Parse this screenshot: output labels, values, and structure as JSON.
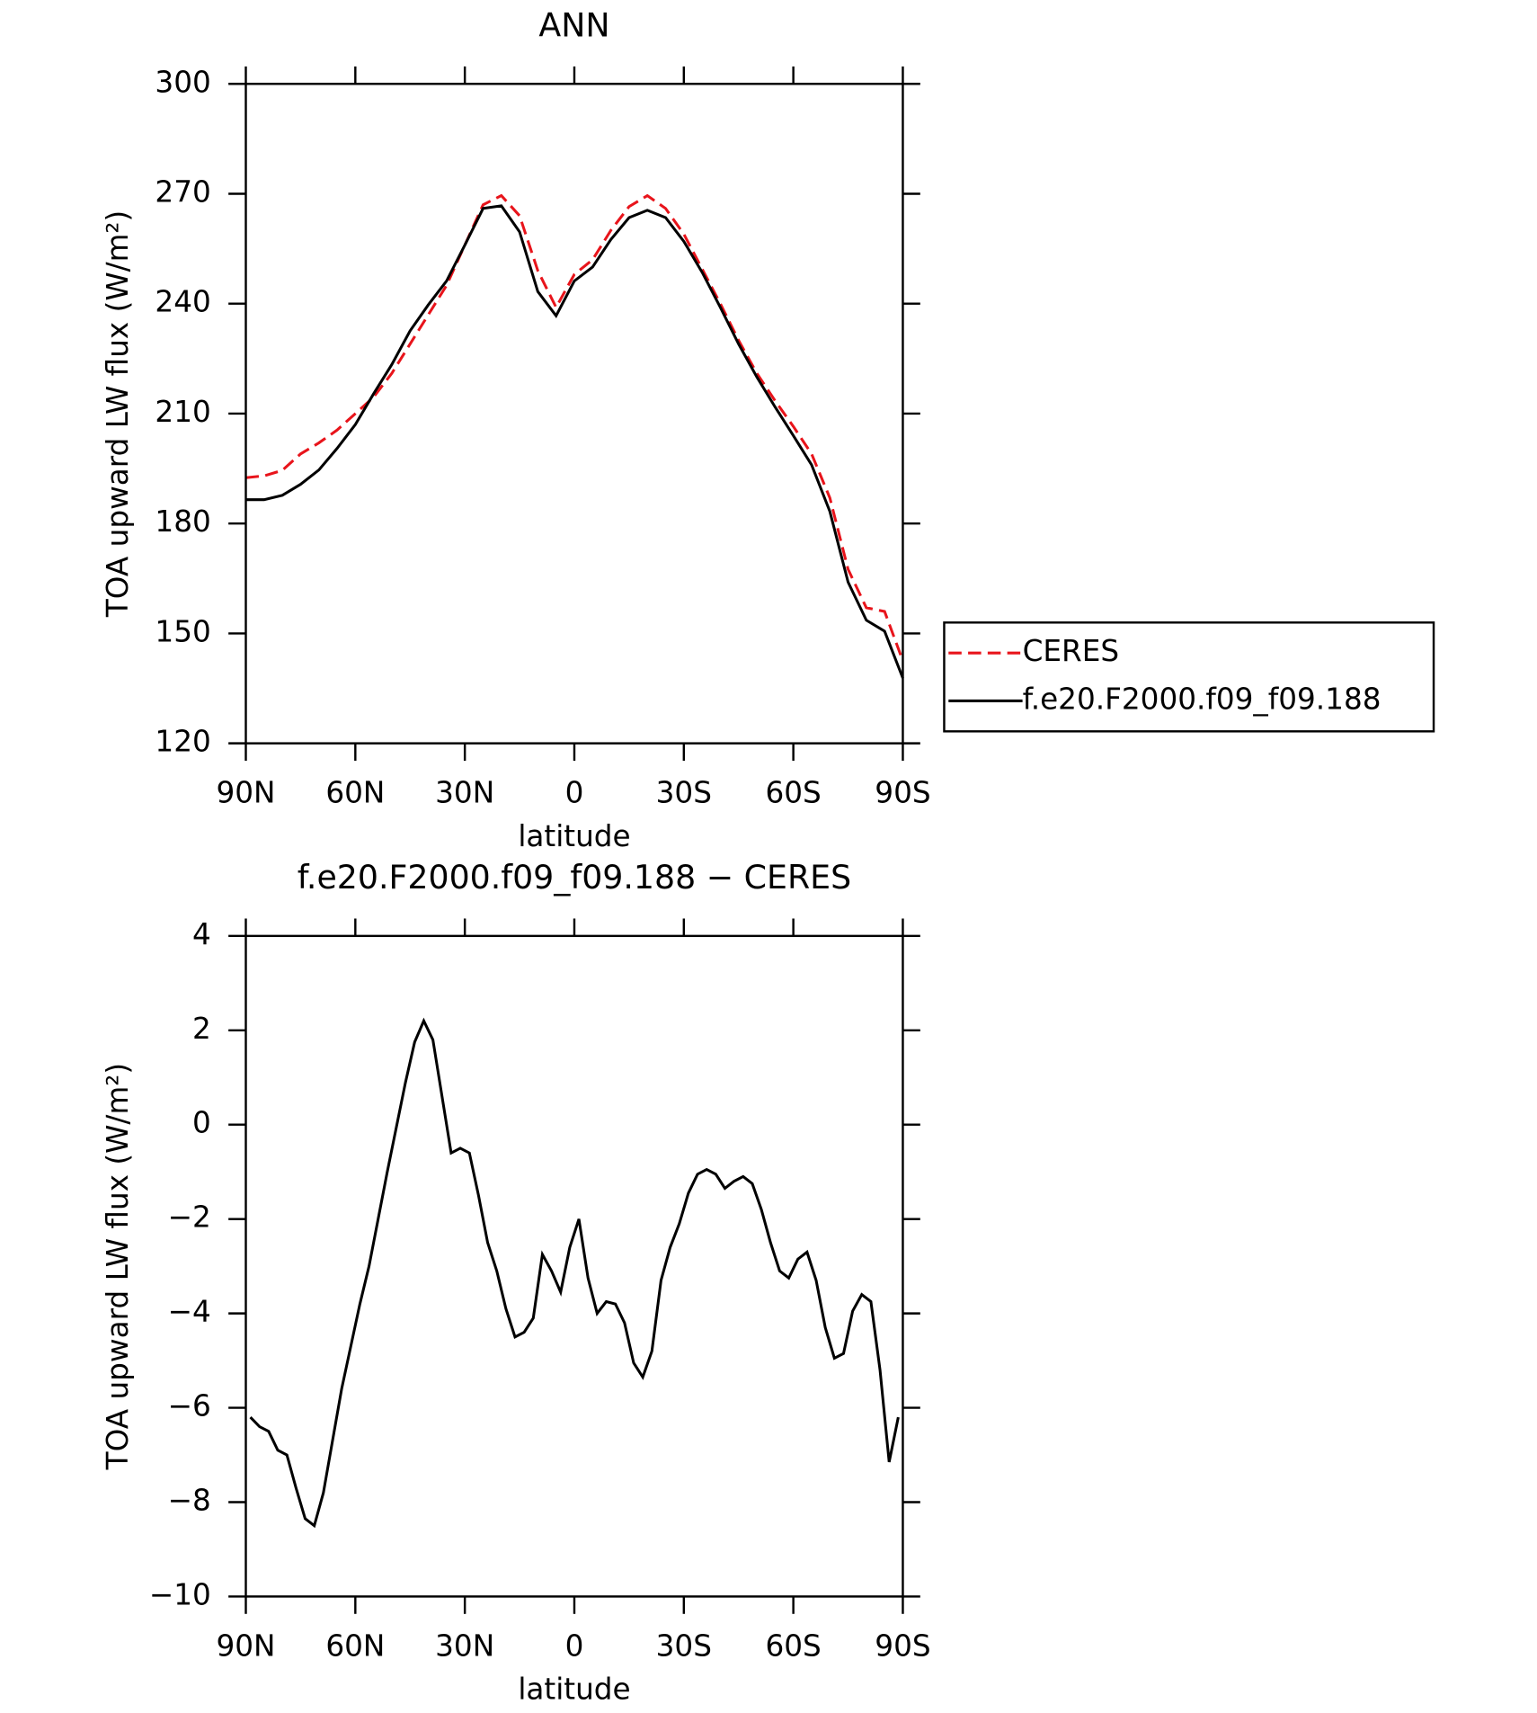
{
  "chart_data": [
    {
      "type": "line",
      "title": "ANN",
      "xlabel": "latitude",
      "ylabel": "TOA upward LW flux (W/m²)",
      "x": [
        90,
        85,
        80,
        75,
        70,
        65,
        60,
        55,
        50,
        45,
        40,
        35,
        30,
        25,
        20,
        15,
        10,
        5,
        0,
        -5,
        -10,
        -15,
        -20,
        -25,
        -30,
        -35,
        -40,
        -45,
        -50,
        -55,
        -60,
        -65,
        -70,
        -75,
        -80,
        -85,
        -90
      ],
      "series": [
        {
          "name": "CERES",
          "color": "#e8141b",
          "linestyle": "dashed",
          "values": [
            192.5,
            193,
            194.5,
            199,
            202,
            205.5,
            210,
            214.5,
            221,
            229,
            237,
            245,
            256,
            267,
            269.5,
            264,
            249,
            239,
            248,
            252,
            260,
            266.5,
            269.5,
            266,
            259,
            249.5,
            240,
            230,
            221,
            213.5,
            206.5,
            199,
            187,
            167.5,
            157,
            156,
            142.5
          ]
        },
        {
          "name": "f.e20.F2000.f09_f09.188",
          "color": "#000000",
          "linestyle": "solid",
          "values": [
            186.5,
            186.5,
            187.7,
            190.7,
            194.6,
            200.5,
            207,
            215.4,
            223.4,
            232.6,
            239.7,
            246.2,
            256,
            266,
            266.7,
            259.6,
            243.3,
            236.7,
            246.2,
            250,
            257.5,
            263.5,
            265.5,
            263.5,
            257,
            248.6,
            239,
            229,
            220,
            211.8,
            204,
            196,
            183.3,
            164,
            153.6,
            150.6,
            137.8
          ]
        }
      ],
      "xlim": [
        90,
        -90
      ],
      "xticks": [
        {
          "value": 90,
          "label": "90N"
        },
        {
          "value": 60,
          "label": "60N"
        },
        {
          "value": 30,
          "label": "30N"
        },
        0,
        {
          "value": -30,
          "label": "30S"
        },
        {
          "value": -60,
          "label": "60S"
        },
        {
          "value": -90,
          "label": "90S"
        }
      ],
      "ylim": [
        120,
        300
      ],
      "yticks": [
        120,
        150,
        180,
        210,
        240,
        270,
        300
      ],
      "legend": "right"
    },
    {
      "type": "line",
      "title": "f.e20.F2000.f09_f09.188 − CERES",
      "xlabel": "latitude",
      "ylabel": "TOA upward LW flux (W/m²)",
      "x": [
        88.75,
        86.25,
        83.75,
        81.25,
        78.75,
        76.25,
        73.75,
        71.25,
        68.75,
        66.25,
        63.75,
        61.25,
        58.75,
        56.25,
        53.75,
        51.25,
        48.75,
        46.25,
        43.75,
        41.25,
        38.75,
        36.25,
        33.75,
        31.25,
        28.75,
        26.25,
        23.75,
        21.25,
        18.75,
        16.25,
        13.75,
        11.25,
        8.75,
        6.25,
        3.75,
        1.25,
        -1.25,
        -3.75,
        -6.25,
        -8.75,
        -11.25,
        -13.75,
        -16.25,
        -18.75,
        -21.25,
        -23.75,
        -26.25,
        -28.75,
        -31.25,
        -33.75,
        -36.25,
        -38.75,
        -41.25,
        -43.75,
        -46.25,
        -48.75,
        -51.25,
        -53.75,
        -56.25,
        -58.75,
        -61.25,
        -63.75,
        -66.25,
        -68.75,
        -71.25,
        -73.75,
        -76.25,
        -78.75,
        -81.25,
        -83.75,
        -86.25,
        -88.75
      ],
      "series": [
        {
          "color": "#000000",
          "linestyle": "solid",
          "values": [
            -6.2,
            -6.4,
            -6.5,
            -6.9,
            -7.0,
            -7.7,
            -8.35,
            -8.5,
            -7.8,
            -6.7,
            -5.6,
            -4.7,
            -3.8,
            -3.0,
            -2.0,
            -1.0,
            -0.05,
            0.9,
            1.75,
            2.2,
            1.8,
            0.6,
            -0.6,
            -0.5,
            -0.6,
            -1.5,
            -2.5,
            -3.1,
            -3.9,
            -4.5,
            -4.4,
            -4.1,
            -2.75,
            -3.1,
            -3.55,
            -2.6,
            -2.0,
            -3.25,
            -4.0,
            -3.75,
            -3.8,
            -4.2,
            -5.05,
            -5.35,
            -4.8,
            -3.3,
            -2.6,
            -2.1,
            -1.45,
            -1.05,
            -0.95,
            -1.05,
            -1.35,
            -1.2,
            -1.1,
            -1.25,
            -1.8,
            -2.5,
            -3.1,
            -3.25,
            -2.85,
            -2.7,
            -3.3,
            -4.3,
            -4.95,
            -4.85,
            -3.95,
            -3.6,
            -3.75,
            -5.2,
            -7.15,
            -6.2
          ]
        }
      ],
      "xlim": [
        90,
        -90
      ],
      "xticks": [
        {
          "value": 90,
          "label": "90N"
        },
        {
          "value": 60,
          "label": "60N"
        },
        {
          "value": 30,
          "label": "30N"
        },
        0,
        {
          "value": -30,
          "label": "30S"
        },
        {
          "value": -60,
          "label": "60S"
        },
        {
          "value": -90,
          "label": "90S"
        }
      ],
      "ylim": [
        -10,
        4
      ],
      "yticks": [
        {
          "value": -10,
          "label": "−10"
        },
        {
          "value": -8,
          "label": "−8"
        },
        {
          "value": -6,
          "label": "−6"
        },
        {
          "value": -4,
          "label": "−4"
        },
        {
          "value": -2,
          "label": "−2"
        },
        0,
        2,
        4
      ]
    }
  ]
}
